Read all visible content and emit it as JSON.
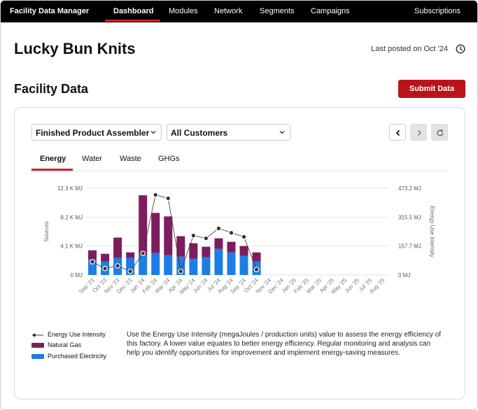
{
  "nav": {
    "brand": "Facility Data Manager",
    "items": [
      {
        "label": "Dashboard",
        "active": true
      },
      {
        "label": "Modules",
        "active": false
      },
      {
        "label": "Network",
        "active": false
      },
      {
        "label": "Segments",
        "active": false
      },
      {
        "label": "Campaigns",
        "active": false
      }
    ],
    "subscriptions": "Subscriptions"
  },
  "header": {
    "title": "Lucky Bun Knits",
    "last_posted": "Last posted on Oct '24"
  },
  "section": {
    "title": "Facility Data",
    "submit_label": "Submit Data"
  },
  "filters": {
    "role": "Finished Product Assembler",
    "customers": "All Customers"
  },
  "tabs": [
    {
      "label": "Energy",
      "active": true
    },
    {
      "label": "Water",
      "active": false
    },
    {
      "label": "Waste",
      "active": false
    },
    {
      "label": "GHGs",
      "active": false
    }
  ],
  "legend": {
    "intensity": "Energy Use Intensity",
    "gas": "Natural Gas",
    "electricity": "Purchased Electricity"
  },
  "description": "Use the Energy Use Intensity (megaJoules / production units) value to assess the energy efficiency of this factory. A lower value equates to better energy efficiency. Regular monitoring and analysis can help you identify opportunities for improvement and implement energy-saving measures.",
  "colors": {
    "brand_red": "#d41f26",
    "submit_red": "#b8141a",
    "gas": "#7d1d5f",
    "electricity": "#1c7ee3",
    "intensity": "#333333"
  },
  "chart_data": {
    "type": "bar",
    "stacked": true,
    "categories": [
      "Sep '23",
      "Oct '23",
      "Nov '23",
      "Dec '23",
      "Jan '24",
      "Feb '24",
      "Mar '24",
      "Apr '24",
      "May '24",
      "Jun '24",
      "Jul '24",
      "Aug '24",
      "Sep '24",
      "Oct '24",
      "Nov '24",
      "Dec '24",
      "Jan '25",
      "Feb '25",
      "Mar '25",
      "Apr '25",
      "May '25",
      "Jun '25",
      "Jul '25",
      "Aug '25"
    ],
    "series": [
      {
        "name": "Purchased Electricity",
        "axis": "left",
        "values": [
          2200,
          1900,
          2400,
          2400,
          2800,
          3100,
          2800,
          2600,
          2300,
          2500,
          3700,
          3200,
          2700,
          1900,
          null,
          null,
          null,
          null,
          null,
          null,
          null,
          null,
          null,
          null
        ]
      },
      {
        "name": "Natural Gas",
        "axis": "left",
        "values": [
          1300,
          1100,
          2900,
          800,
          8500,
          5700,
          5500,
          2900,
          2200,
          1500,
          1500,
          1500,
          1400,
          1300,
          null,
          null,
          null,
          null,
          null,
          null,
          null,
          null,
          null,
          null
        ]
      },
      {
        "name": "Energy Use Intensity",
        "type": "line",
        "axis": "right",
        "values": [
          72,
          35,
          50,
          20,
          118,
          437,
          418,
          20,
          215,
          200,
          254,
          230,
          208,
          30,
          null,
          null,
          null,
          null,
          null,
          null,
          null,
          null,
          null,
          null
        ]
      }
    ],
    "ylabel": "Sources",
    "y2label": "Energy Use Intensity",
    "ylim": [
      0,
      12300
    ],
    "y2lim": [
      0,
      473.2
    ],
    "yticks": [
      "0 MJ",
      "4.1 K MJ",
      "8.2 K MJ",
      "12.3 K MJ"
    ],
    "y2ticks": [
      "0 MJ",
      "157.7 MJ",
      "315.5 MJ",
      "473.2 MJ"
    ],
    "grid": true
  }
}
